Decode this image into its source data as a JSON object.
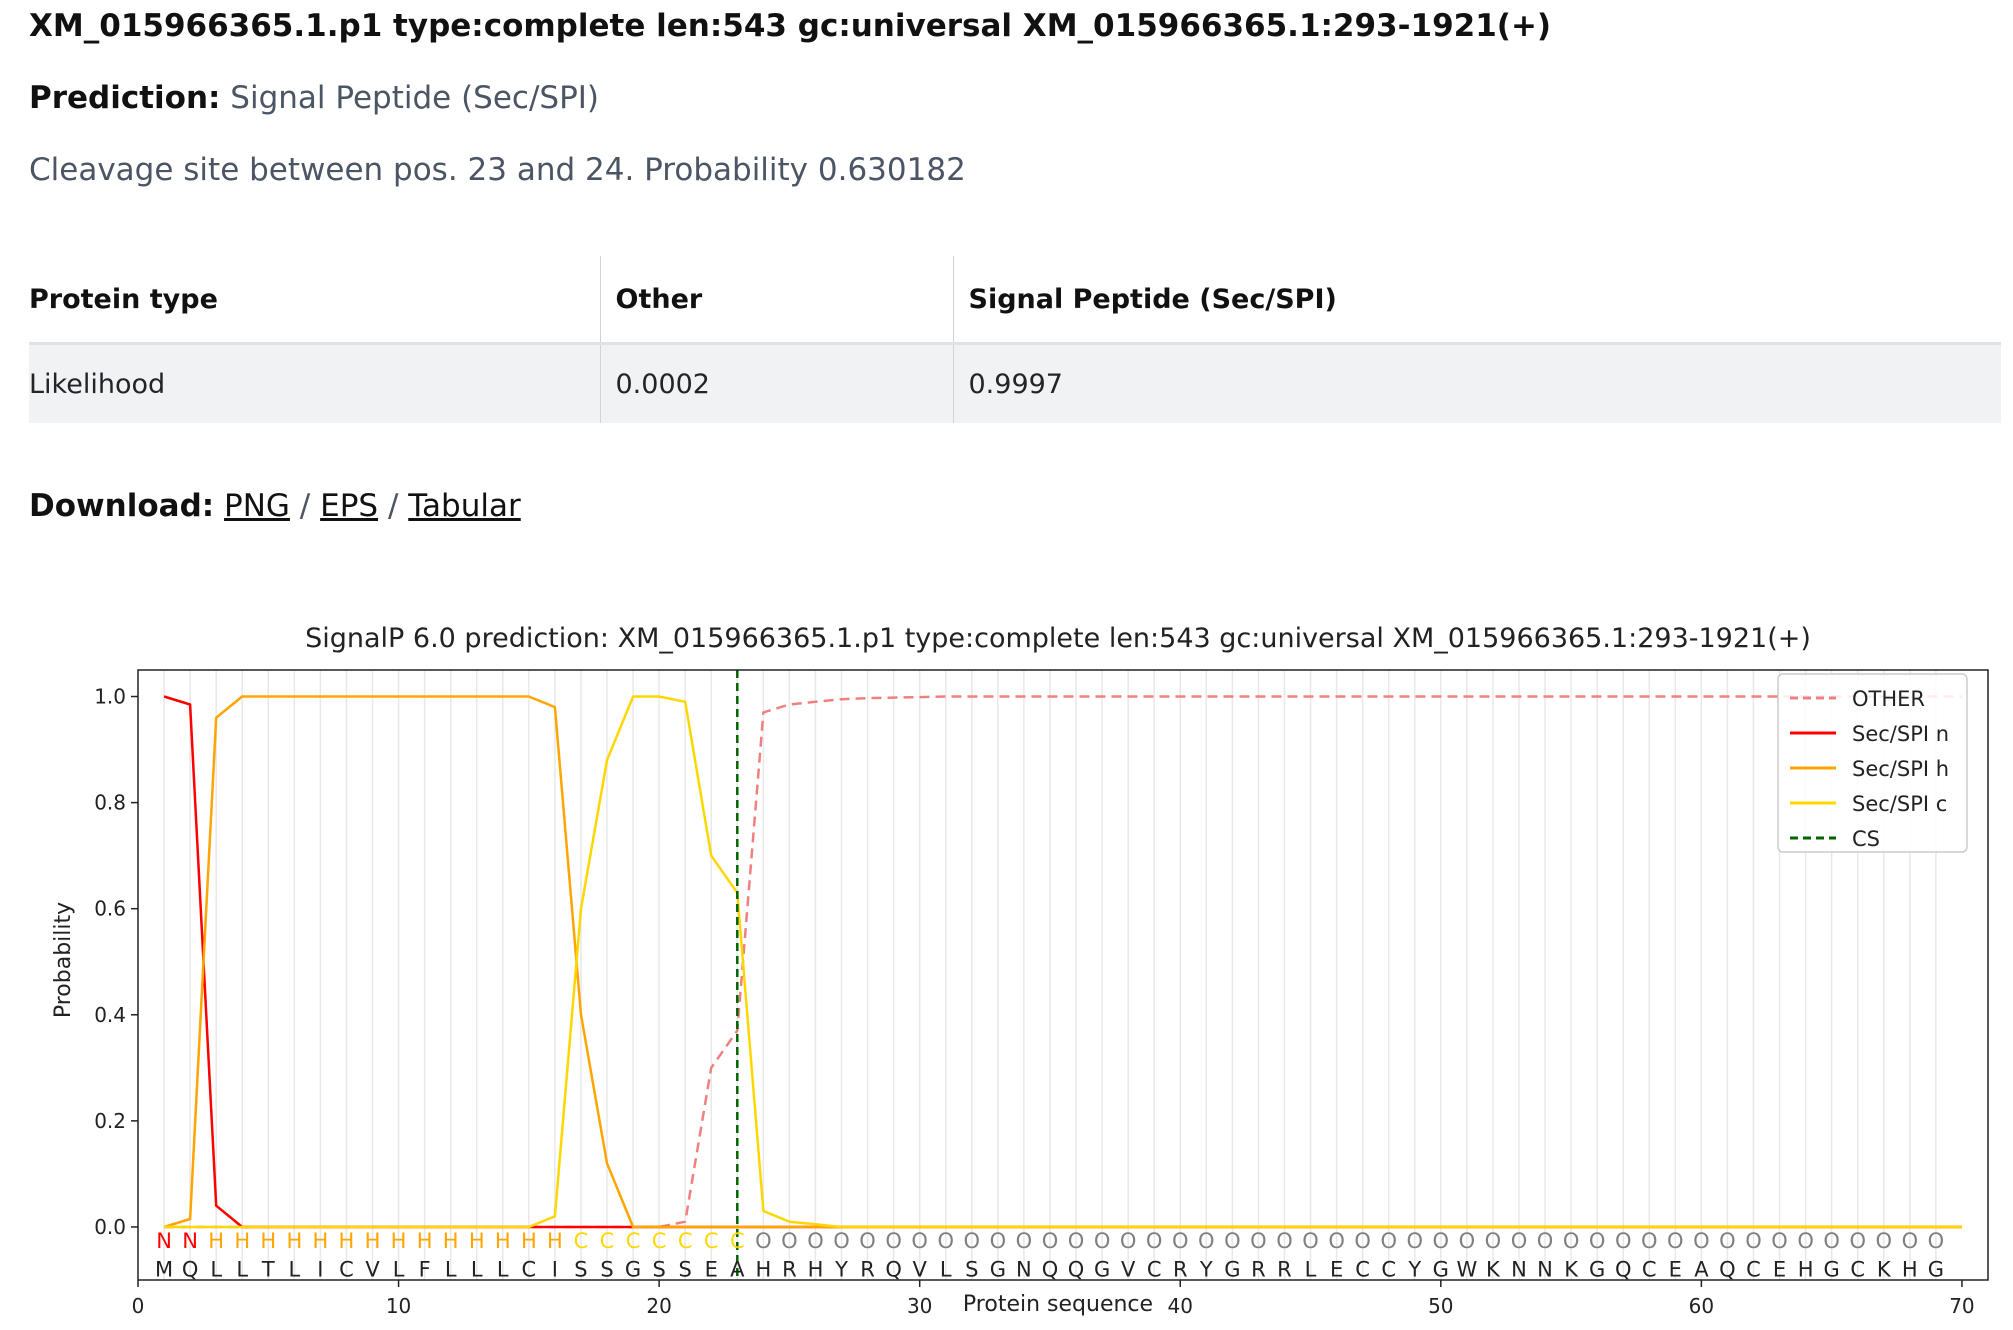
{
  "header": {
    "title": "XM_015966365.1.p1 type:complete len:543 gc:universal XM_015966365.1:293-1921(+)",
    "prediction_label": "Prediction:",
    "prediction_value": "Signal Peptide (Sec/SPI)",
    "cleavage_text": "Cleavage site between pos. 23 and 24. Probability 0.630182"
  },
  "table": {
    "headers": [
      "Protein type",
      "Other",
      "Signal Peptide (Sec/SPI)"
    ],
    "row": [
      "Likelihood",
      "0.0002",
      "0.9997"
    ]
  },
  "download": {
    "label": "Download:",
    "links": [
      "PNG",
      "EPS",
      "Tabular"
    ],
    "separator": "/"
  },
  "chart_data": {
    "type": "line",
    "title": "SignalP 6.0 prediction: XM_015966365.1.p1 type:complete len:543 gc:universal XM_015966365.1:293-1921(+)",
    "xlabel": "Protein sequence",
    "ylabel": "Probability",
    "xlim": [
      0,
      71
    ],
    "ylim": [
      -0.1,
      1.05
    ],
    "x_ticks": [
      0,
      10,
      20,
      30,
      40,
      50,
      60,
      70
    ],
    "y_ticks": [
      0.0,
      0.2,
      0.4,
      0.6,
      0.8,
      1.0
    ],
    "y_tick_labels": [
      "0.0",
      "0.2",
      "0.4",
      "0.6",
      "0.8",
      "1.0"
    ],
    "grid": "vertical lines at each position",
    "legend_position": "top-right",
    "sequence": "MQLLTLICVLFLLLCISSGSSEAHRHYRQVLSGNQQGVCRYGRRLECCYGWKNNKGQCEAQCEHGCKHG",
    "labels": "NNHHHHHHHHHHHHHHCCCCCCCOOOOOOOOOOOOOOOOOOOOOOOOOOOOOOOOOOOOOOOOOOOOOOO",
    "label_colors": {
      "N": "#ff0000",
      "H": "#ffa500",
      "C": "#ffd700",
      "O": "#808080"
    },
    "cs_position": 23,
    "series": [
      {
        "name": "OTHER",
        "color": "#f08080",
        "dash": "dashed",
        "values": [
          0,
          0,
          0,
          0,
          0,
          0,
          0,
          0,
          0,
          0,
          0,
          0,
          0,
          0,
          0,
          0,
          0,
          0,
          0,
          0,
          0.01,
          0.3,
          0.37,
          0.97,
          0.985,
          0.99,
          0.995,
          0.997,
          0.998,
          0.999,
          1,
          1,
          1,
          1,
          1,
          1,
          1,
          1,
          1,
          1,
          1,
          1,
          1,
          1,
          1,
          1,
          1,
          1,
          1,
          1,
          1,
          1,
          1,
          1,
          1,
          1,
          1,
          1,
          1,
          1,
          1,
          1,
          1,
          1,
          1,
          1,
          1,
          1,
          1,
          1
        ]
      },
      {
        "name": "Sec/SPI n",
        "color": "#ff0000",
        "dash": "solid",
        "values": [
          1.0,
          0.985,
          0.04,
          0,
          0,
          0,
          0,
          0,
          0,
          0,
          0,
          0,
          0,
          0,
          0,
          0,
          0,
          0,
          0,
          0,
          0,
          0,
          0,
          0,
          0,
          0,
          0,
          0,
          0,
          0,
          0,
          0,
          0,
          0,
          0,
          0,
          0,
          0,
          0,
          0,
          0,
          0,
          0,
          0,
          0,
          0,
          0,
          0,
          0,
          0,
          0,
          0,
          0,
          0,
          0,
          0,
          0,
          0,
          0,
          0,
          0,
          0,
          0,
          0,
          0,
          0,
          0,
          0,
          0,
          0
        ]
      },
      {
        "name": "Sec/SPI h",
        "color": "#ffa500",
        "dash": "solid",
        "values": [
          0,
          0.015,
          0.96,
          1,
          1,
          1,
          1,
          1,
          1,
          1,
          1,
          1,
          1,
          1,
          1,
          0.98,
          0.4,
          0.12,
          0,
          0,
          0,
          0,
          0,
          0,
          0,
          0,
          0,
          0,
          0,
          0,
          0,
          0,
          0,
          0,
          0,
          0,
          0,
          0,
          0,
          0,
          0,
          0,
          0,
          0,
          0,
          0,
          0,
          0,
          0,
          0,
          0,
          0,
          0,
          0,
          0,
          0,
          0,
          0,
          0,
          0,
          0,
          0,
          0,
          0,
          0,
          0,
          0,
          0,
          0,
          0
        ]
      },
      {
        "name": "Sec/SPI c",
        "color": "#ffd700",
        "dash": "solid",
        "values": [
          0,
          0,
          0,
          0,
          0,
          0,
          0,
          0,
          0,
          0,
          0,
          0,
          0,
          0,
          0,
          0.02,
          0.6,
          0.88,
          1,
          1,
          0.99,
          0.7,
          0.63,
          0.03,
          0.01,
          0.005,
          0,
          0,
          0,
          0,
          0,
          0,
          0,
          0,
          0,
          0,
          0,
          0,
          0,
          0,
          0,
          0,
          0,
          0,
          0,
          0,
          0,
          0,
          0,
          0,
          0,
          0,
          0,
          0,
          0,
          0,
          0,
          0,
          0,
          0,
          0,
          0,
          0,
          0,
          0,
          0,
          0,
          0,
          0,
          0
        ]
      },
      {
        "name": "CS",
        "color": "#006400",
        "dash": "dashed",
        "values": []
      }
    ]
  }
}
